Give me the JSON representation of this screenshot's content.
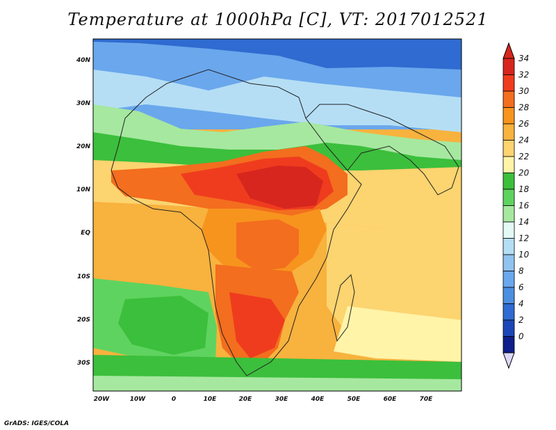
{
  "title": "Temperature at 1000hPa [C], VT: 2017012521",
  "credit": "GrADS: IGES/COLA",
  "lat_labels": [
    "40N",
    "30N",
    "20N",
    "10N",
    "EQ",
    "10S",
    "20S",
    "30S"
  ],
  "lon_labels": [
    "20W",
    "10W",
    "0",
    "10E",
    "20E",
    "30E",
    "40E",
    "50E",
    "60E",
    "70E"
  ],
  "colorbar": {
    "labels": [
      "34",
      "32",
      "30",
      "28",
      "26",
      "24",
      "22",
      "20",
      "18",
      "16",
      "14",
      "12",
      "10",
      "8",
      "6",
      "4",
      "2",
      "0"
    ],
    "colors": [
      "#d7261e",
      "#ef3c1e",
      "#f36e1e",
      "#f7941e",
      "#f8b23e",
      "#fcd470",
      "#fff4a8",
      "#3cbf3c",
      "#5fd35f",
      "#a6e8a0",
      "#e4f9f4",
      "#b5def5",
      "#92c2f0",
      "#6aa7ec",
      "#4c8ee0",
      "#2f6bd0",
      "#1c46b8",
      "#0e1e8a"
    ],
    "over_color": "#d7261e",
    "under_color": "#dcd8f8"
  },
  "chart_data": {
    "type": "heatmap",
    "title": "Temperature at 1000hPa [C], VT: 2017012521",
    "x_range": [
      -23,
      80
    ],
    "y_range": [
      -35,
      45
    ],
    "units": "C"
  }
}
